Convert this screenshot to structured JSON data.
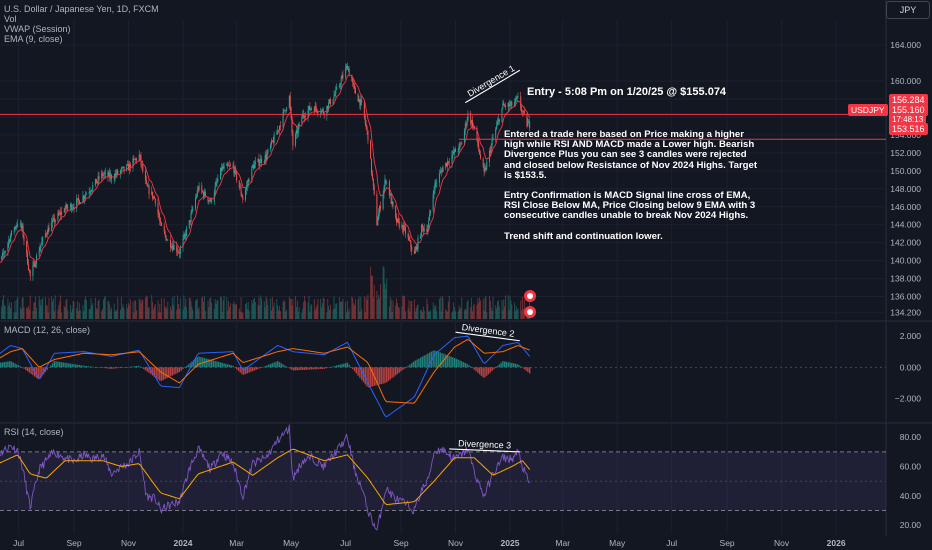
{
  "header": {
    "title": "U.S. Dollar / Japanese Yen, 1D, FXCM",
    "indicators": [
      "Vol",
      "VWAP (Session)",
      "EMA (9, close)"
    ],
    "currency_button": "JPY",
    "symbol_badge": "USDJPY"
  },
  "annotations": {
    "entry": "Entry - 5:08 Pm on 1/20/25 @ $155.074",
    "note_paragraphs": [
      "Entered a trade here based on Price making a higher high while RSI AND MACD made a Lower high. Bearish Divergence Plus you can see 3 candles were rejected and closed below Resistance of Nov 2024 Highs. Target is $153.5.",
      "Entry Confirmation is MACD Signal line cross of EMA, RSI Close Below MA, Price Closing below 9 EMA with 3 consecutive candles unable to break Nov 2024 Highs.",
      "Trend shift and continuation lower."
    ],
    "divergence_labels": [
      "Divergence 1",
      "Divergence 2",
      "Divergence 3"
    ]
  },
  "price_badges": {
    "resistance": "156.284",
    "last": "155.160",
    "countdown": "17:48:13",
    "support": "153.516"
  },
  "colors": {
    "up": "#26a69a",
    "down": "#ef5350",
    "ema": "#f23645",
    "level_line": "#f23645",
    "macd_line": "#2962ff",
    "signal_line": "#ff6d00",
    "rsi_line": "#7e57c2",
    "rsi_ma": "#f7a600",
    "background": "#131722"
  },
  "chart_data": [
    {
      "type": "candlestick",
      "title": "U.S. Dollar / Japanese Yen, 1D, FXCM",
      "x_ticks": [
        "Jul",
        "Sep",
        "Nov",
        "2024",
        "Mar",
        "May",
        "Jul",
        "Sep",
        "Nov",
        "2025",
        "Mar",
        "May",
        "Jul",
        "Sep",
        "Nov",
        "2026"
      ],
      "y_ticks": [
        134.2,
        136,
        138,
        140,
        142,
        144,
        146,
        148,
        150,
        152,
        154,
        156,
        158,
        160,
        164
      ],
      "ylim": [
        133.5,
        166.8
      ],
      "close_path": [
        [
          "2023-06-01",
          139.5
        ],
        [
          "2023-06-12",
          140.2
        ],
        [
          "2023-06-22",
          142.8
        ],
        [
          "2023-06-30",
          144.3
        ],
        [
          "2023-07-05",
          143.5
        ],
        [
          "2023-07-14",
          138.2
        ],
        [
          "2023-07-24",
          141.3
        ],
        [
          "2023-08-01",
          143.2
        ],
        [
          "2023-08-10",
          144.5
        ],
        [
          "2023-08-22",
          145.8
        ],
        [
          "2023-09-01",
          146.2
        ],
        [
          "2023-09-12",
          147.2
        ],
        [
          "2023-09-22",
          148.3
        ],
        [
          "2023-10-03",
          149.6
        ],
        [
          "2023-10-13",
          149.3
        ],
        [
          "2023-10-24",
          150.0
        ],
        [
          "2023-11-01",
          150.4
        ],
        [
          "2023-11-13",
          151.7
        ],
        [
          "2023-11-21",
          148.2
        ],
        [
          "2023-12-01",
          146.8
        ],
        [
          "2023-12-07",
          143.8
        ],
        [
          "2023-12-15",
          142.2
        ],
        [
          "2023-12-28",
          141.0
        ],
        [
          "2024-01-08",
          144.2
        ],
        [
          "2024-01-18",
          148.1
        ],
        [
          "2024-02-01",
          146.6
        ],
        [
          "2024-02-13",
          150.2
        ],
        [
          "2024-02-26",
          150.5
        ],
        [
          "2024-03-08",
          146.9
        ],
        [
          "2024-03-19",
          150.5
        ],
        [
          "2024-04-03",
          151.6
        ],
        [
          "2024-04-16",
          154.5
        ],
        [
          "2024-04-29",
          158.2
        ],
        [
          "2024-05-03",
          152.9
        ],
        [
          "2024-05-14",
          156.2
        ],
        [
          "2024-05-24",
          157.1
        ],
        [
          "2024-06-07",
          156.6
        ],
        [
          "2024-06-20",
          158.7
        ],
        [
          "2024-07-03",
          161.7
        ],
        [
          "2024-07-11",
          158.9
        ],
        [
          "2024-07-19",
          157.3
        ],
        [
          "2024-07-26",
          153.8
        ],
        [
          "2024-08-05",
          144.2
        ],
        [
          "2024-08-15",
          149.2
        ],
        [
          "2024-08-26",
          144.5
        ],
        [
          "2024-09-05",
          143.4
        ],
        [
          "2024-09-16",
          140.6
        ],
        [
          "2024-09-24",
          143.6
        ],
        [
          "2024-10-01",
          143.6
        ],
        [
          "2024-10-08",
          148.2
        ],
        [
          "2024-10-17",
          150.2
        ],
        [
          "2024-10-31",
          152.1
        ],
        [
          "2024-11-07",
          152.8
        ],
        [
          "2024-11-15",
          156.3
        ],
        [
          "2024-11-22",
          154.7
        ],
        [
          "2024-12-03",
          149.6
        ],
        [
          "2024-12-13",
          153.6
        ],
        [
          "2024-12-24",
          157.2
        ],
        [
          "2025-01-03",
          157.3
        ],
        [
          "2025-01-10",
          158.0
        ],
        [
          "2025-01-15",
          156.5
        ],
        [
          "2025-01-20",
          155.2
        ],
        [
          "2025-01-23",
          155.16
        ]
      ],
      "levels": [
        {
          "label": "Resistance of Nov 2024 Highs",
          "value": 156.284
        },
        {
          "label": "Target",
          "value": 153.516
        }
      ]
    },
    {
      "type": "line",
      "title": "MACD (12, 26, close)",
      "y_ticks": [
        2.0,
        0.0,
        -2.0
      ],
      "ylim": [
        -3.5,
        2.9
      ],
      "series": [
        {
          "role": "macd",
          "values": [
            [
              "2023-06-01",
              0.5
            ],
            [
              "2023-06-22",
              1.4
            ],
            [
              "2023-07-05",
              1.2
            ],
            [
              "2023-07-24",
              -0.8
            ],
            [
              "2023-08-10",
              0.9
            ],
            [
              "2023-09-12",
              1.0
            ],
            [
              "2023-10-13",
              0.7
            ],
            [
              "2023-11-13",
              1.1
            ],
            [
              "2023-12-07",
              -1.2
            ],
            [
              "2023-12-28",
              -1.3
            ],
            [
              "2024-01-18",
              0.9
            ],
            [
              "2024-02-26",
              1.0
            ],
            [
              "2024-03-08",
              -0.2
            ],
            [
              "2024-04-16",
              1.4
            ],
            [
              "2024-05-03",
              1.0
            ],
            [
              "2024-06-07",
              0.8
            ],
            [
              "2024-07-03",
              1.6
            ],
            [
              "2024-07-26",
              -1.0
            ],
            [
              "2024-08-15",
              -3.2
            ],
            [
              "2024-09-16",
              -1.9
            ],
            [
              "2024-10-08",
              0.8
            ],
            [
              "2024-10-31",
              1.9
            ],
            [
              "2024-11-15",
              2.0
            ],
            [
              "2024-12-03",
              0.2
            ],
            [
              "2024-12-24",
              1.4
            ],
            [
              "2025-01-10",
              1.6
            ],
            [
              "2025-01-23",
              0.7
            ]
          ]
        },
        {
          "role": "signal",
          "values": [
            [
              "2023-06-01",
              0.3
            ],
            [
              "2023-06-22",
              1.0
            ],
            [
              "2023-07-05",
              1.2
            ],
            [
              "2023-07-24",
              0.0
            ],
            [
              "2023-08-10",
              0.5
            ],
            [
              "2023-09-12",
              0.9
            ],
            [
              "2023-10-13",
              0.8
            ],
            [
              "2023-11-13",
              1.0
            ],
            [
              "2023-12-07",
              -0.3
            ],
            [
              "2023-12-28",
              -1.0
            ],
            [
              "2024-01-18",
              0.2
            ],
            [
              "2024-02-26",
              0.9
            ],
            [
              "2024-03-08",
              0.3
            ],
            [
              "2024-04-16",
              1.0
            ],
            [
              "2024-05-03",
              1.2
            ],
            [
              "2024-06-07",
              0.9
            ],
            [
              "2024-07-03",
              1.3
            ],
            [
              "2024-07-26",
              0.3
            ],
            [
              "2024-08-15",
              -2.2
            ],
            [
              "2024-09-16",
              -2.3
            ],
            [
              "2024-10-08",
              -0.3
            ],
            [
              "2024-10-31",
              1.3
            ],
            [
              "2024-11-15",
              1.8
            ],
            [
              "2024-12-03",
              0.9
            ],
            [
              "2024-12-24",
              1.0
            ],
            [
              "2025-01-10",
              1.4
            ],
            [
              "2025-01-23",
              1.1
            ]
          ]
        }
      ]
    },
    {
      "type": "line",
      "title": "RSI (14, close)",
      "y_ticks": [
        80.0,
        60.0,
        40.0,
        20.0
      ],
      "band": [
        30,
        70
      ],
      "ylim": [
        14,
        89
      ],
      "series": [
        {
          "role": "rsi",
          "values": [
            [
              "2023-06-01",
              62
            ],
            [
              "2023-06-12",
              70
            ],
            [
              "2023-06-22",
              74
            ],
            [
              "2023-06-30",
              71
            ],
            [
              "2023-07-05",
              60
            ],
            [
              "2023-07-14",
              32
            ],
            [
              "2023-07-24",
              58
            ],
            [
              "2023-08-01",
              64
            ],
            [
              "2023-08-10",
              70
            ],
            [
              "2023-08-22",
              66
            ],
            [
              "2023-09-01",
              63
            ],
            [
              "2023-09-12",
              68
            ],
            [
              "2023-09-22",
              65
            ],
            [
              "2023-10-03",
              68
            ],
            [
              "2023-10-13",
              55
            ],
            [
              "2023-10-24",
              60
            ],
            [
              "2023-11-01",
              62
            ],
            [
              "2023-11-13",
              70
            ],
            [
              "2023-11-21",
              40
            ],
            [
              "2023-12-01",
              38
            ],
            [
              "2023-12-07",
              30
            ],
            [
              "2023-12-15",
              33
            ],
            [
              "2023-12-28",
              36
            ],
            [
              "2024-01-08",
              58
            ],
            [
              "2024-01-18",
              72
            ],
            [
              "2024-02-01",
              58
            ],
            [
              "2024-02-13",
              70
            ],
            [
              "2024-02-26",
              62
            ],
            [
              "2024-03-08",
              40
            ],
            [
              "2024-03-19",
              62
            ],
            [
              "2024-04-03",
              66
            ],
            [
              "2024-04-16",
              78
            ],
            [
              "2024-04-29",
              86
            ],
            [
              "2024-05-03",
              52
            ],
            [
              "2024-05-14",
              64
            ],
            [
              "2024-05-24",
              66
            ],
            [
              "2024-06-07",
              60
            ],
            [
              "2024-06-20",
              70
            ],
            [
              "2024-07-03",
              80
            ],
            [
              "2024-07-11",
              58
            ],
            [
              "2024-07-19",
              45
            ],
            [
              "2024-07-26",
              30
            ],
            [
              "2024-08-05",
              16
            ],
            [
              "2024-08-15",
              45
            ],
            [
              "2024-08-26",
              38
            ],
            [
              "2024-09-05",
              35
            ],
            [
              "2024-09-16",
              30
            ],
            [
              "2024-09-24",
              44
            ],
            [
              "2024-10-01",
              50
            ],
            [
              "2024-10-08",
              70
            ],
            [
              "2024-10-17",
              72
            ],
            [
              "2024-10-31",
              65
            ],
            [
              "2024-11-07",
              68
            ],
            [
              "2024-11-15",
              72
            ],
            [
              "2024-11-22",
              56
            ],
            [
              "2024-12-03",
              40
            ],
            [
              "2024-12-13",
              55
            ],
            [
              "2024-12-24",
              66
            ],
            [
              "2025-01-03",
              65
            ],
            [
              "2025-01-10",
              70
            ],
            [
              "2025-01-15",
              60
            ],
            [
              "2025-01-20",
              52
            ],
            [
              "2025-01-23",
              48
            ]
          ]
        },
        {
          "role": "rsi_ma",
          "values": [
            [
              "2023-06-01",
              60
            ],
            [
              "2023-06-30",
              68
            ],
            [
              "2023-07-14",
              55
            ],
            [
              "2023-08-01",
              52
            ],
            [
              "2023-08-22",
              64
            ],
            [
              "2023-10-03",
              64
            ],
            [
              "2023-10-24",
              60
            ],
            [
              "2023-11-13",
              62
            ],
            [
              "2023-12-07",
              42
            ],
            [
              "2023-12-28",
              38
            ],
            [
              "2024-01-18",
              55
            ],
            [
              "2024-02-26",
              63
            ],
            [
              "2024-03-19",
              54
            ],
            [
              "2024-04-16",
              66
            ],
            [
              "2024-05-03",
              72
            ],
            [
              "2024-06-07",
              64
            ],
            [
              "2024-07-03",
              68
            ],
            [
              "2024-07-26",
              52
            ],
            [
              "2024-08-15",
              34
            ],
            [
              "2024-09-16",
              36
            ],
            [
              "2024-10-08",
              50
            ],
            [
              "2024-10-31",
              66
            ],
            [
              "2024-11-22",
              66
            ],
            [
              "2024-12-13",
              54
            ],
            [
              "2025-01-03",
              60
            ],
            [
              "2025-01-15",
              64
            ],
            [
              "2025-01-23",
              58
            ]
          ]
        }
      ]
    }
  ]
}
